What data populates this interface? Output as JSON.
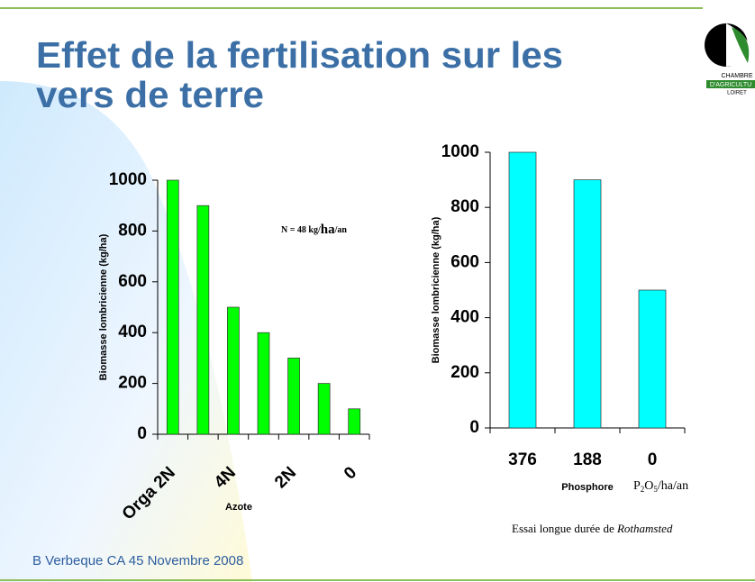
{
  "title": "Effet de la fertilisation sur les vers de terre",
  "footer": "B Verbeque CA 45 Novembre 2008",
  "logo": [
    "CHAMBRE",
    "D'AGRICULTU",
    "LOIRET"
  ],
  "chart_data": [
    {
      "type": "bar",
      "color": "#00ff00",
      "categories": [
        "Orga 2N",
        null,
        "4N",
        null,
        "2N",
        null,
        "0"
      ],
      "values": [
        1000,
        900,
        500,
        400,
        300,
        200,
        100
      ],
      "ylim": [
        0,
        1000
      ],
      "yticks": [
        0,
        200,
        400,
        600,
        800,
        1000
      ],
      "ylabel": "Biomasse lombricienne (kg/ha)",
      "xlabel": "Azote",
      "annotation": [
        "N = 48 kg/",
        "ha",
        "/an"
      ]
    },
    {
      "type": "bar",
      "color": "#00ffff",
      "categories": [
        "376",
        "188",
        "0"
      ],
      "values": [
        1000,
        900,
        500
      ],
      "ylim": [
        0,
        1000
      ],
      "yticks": [
        0,
        200,
        400,
        600,
        800,
        1000
      ],
      "ylabel": "Biomasse lombricienne (kg/ha)",
      "xlabel": "Phosphore",
      "unit": [
        "P",
        "2",
        "O",
        "5",
        "/ha/an"
      ],
      "caption": [
        "Essai longue durée de ",
        "Rothamsted"
      ]
    }
  ]
}
